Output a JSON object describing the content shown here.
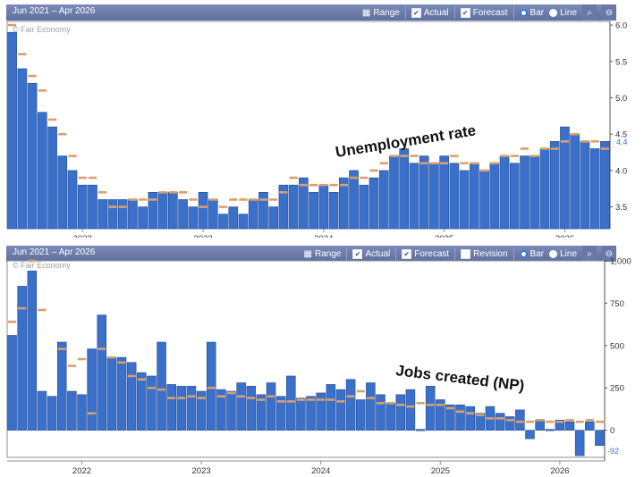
{
  "colors": {
    "bar": "#3a6fca",
    "bar_edge": "#244c93",
    "forecast": "#d9a06e",
    "toolbar": "#6b7bab"
  },
  "panels": [
    {
      "range_text": "Jun 2021 – Apr 2026",
      "buttons": {
        "range": "Range",
        "actual": "Actual",
        "forecast": "Forecast",
        "bar": "Bar",
        "line": "Line"
      },
      "icons": [
        "calendar-icon",
        "zoom-in-icon",
        "zoom-out-icon"
      ],
      "watermark": "© Fair Economy",
      "annotation": "Unemployment rate",
      "current_value_label": "4.4"
    },
    {
      "range_text": "Jun 2021 – Apr 2026",
      "buttons": {
        "range": "Range",
        "actual": "Actual",
        "forecast": "Forecast",
        "revision": "Revision",
        "bar": "Bar",
        "line": "Line"
      },
      "icons": [
        "calendar-icon",
        "zoom-in-icon",
        "zoom-out-icon"
      ],
      "watermark": "© Fair Economy",
      "annotation": "Jobs created (NP)",
      "current_value_label": "-92"
    }
  ],
  "chart_data": [
    {
      "type": "bar",
      "title": "Unemployment rate",
      "x_start": "2021-06",
      "x_ticks": [
        "2022",
        "2023",
        "2024",
        "2025",
        "2026"
      ],
      "y_ticks": [
        "3.5",
        "4.0",
        "4.5",
        "5.0",
        "5.5",
        "6.0"
      ],
      "ylim": [
        3.2,
        6.05
      ],
      "grid": false,
      "series": [
        {
          "name": "Actual",
          "values": [
            5.9,
            5.4,
            5.2,
            4.8,
            4.6,
            4.2,
            4.0,
            3.8,
            3.8,
            3.6,
            3.6,
            3.6,
            3.6,
            3.5,
            3.7,
            3.7,
            3.7,
            3.6,
            3.5,
            3.7,
            3.6,
            3.4,
            3.5,
            3.4,
            3.6,
            3.7,
            3.5,
            3.8,
            3.8,
            3.9,
            3.7,
            3.8,
            3.7,
            3.9,
            4.0,
            3.8,
            3.9,
            4.0,
            4.2,
            4.3,
            4.1,
            4.2,
            4.1,
            4.2,
            4.1,
            4.0,
            4.1,
            4.0,
            4.1,
            4.2,
            4.1,
            4.2,
            4.2,
            4.3,
            4.4,
            4.6,
            4.5,
            4.4,
            4.3,
            4.4
          ]
        },
        {
          "name": "Forecast",
          "values": [
            6.0,
            5.6,
            5.3,
            5.1,
            4.7,
            4.5,
            4.2,
            3.9,
            3.9,
            3.7,
            3.5,
            3.5,
            3.6,
            3.6,
            3.6,
            3.7,
            3.7,
            3.7,
            3.6,
            3.5,
            3.6,
            3.5,
            3.6,
            3.6,
            3.6,
            3.6,
            3.6,
            3.7,
            3.9,
            3.8,
            3.8,
            3.8,
            3.8,
            3.8,
            3.9,
            3.9,
            4.0,
            4.1,
            4.2,
            4.2,
            4.2,
            4.1,
            4.1,
            4.1,
            4.2,
            4.1,
            4.1,
            4.0,
            4.1,
            4.2,
            4.2,
            4.3,
            4.2,
            4.3,
            4.3,
            4.4,
            4.5,
            4.4,
            4.4,
            4.3
          ]
        }
      ]
    },
    {
      "type": "bar",
      "title": "Jobs created (NP)",
      "x_start": "2021-06",
      "x_ticks": [
        "2022",
        "2023",
        "2024",
        "2025",
        "2026"
      ],
      "y_ticks": [
        "0",
        "250",
        "500",
        "750",
        "1,000"
      ],
      "ylim": [
        -160,
        1000
      ],
      "grid": false,
      "series": [
        {
          "name": "Actual",
          "values": [
            560,
            850,
            940,
            230,
            200,
            520,
            230,
            210,
            480,
            680,
            430,
            430,
            400,
            340,
            320,
            520,
            270,
            260,
            260,
            230,
            520,
            240,
            230,
            280,
            260,
            210,
            280,
            200,
            320,
            190,
            200,
            220,
            270,
            240,
            300,
            180,
            280,
            210,
            160,
            210,
            240,
            0,
            260,
            180,
            150,
            150,
            140,
            100,
            140,
            100,
            80,
            120,
            -50,
            60,
            0,
            60,
            50,
            -150,
            50,
            -90
          ]
        },
        {
          "name": "Forecast",
          "values": [
            640,
            720,
            1000,
            710,
            null,
            480,
            380,
            420,
            100,
            480,
            430,
            400,
            320,
            300,
            250,
            240,
            190,
            190,
            200,
            190,
            250,
            200,
            220,
            200,
            190,
            180,
            200,
            170,
            170,
            180,
            180,
            180,
            180,
            170,
            200,
            230,
            190,
            160,
            160,
            150,
            140,
            160,
            150,
            150,
            130,
            110,
            100,
            90,
            70,
            70,
            60,
            50,
            50,
            60,
            50,
            50,
            60,
            50,
            60,
            50
          ]
        }
      ]
    }
  ]
}
